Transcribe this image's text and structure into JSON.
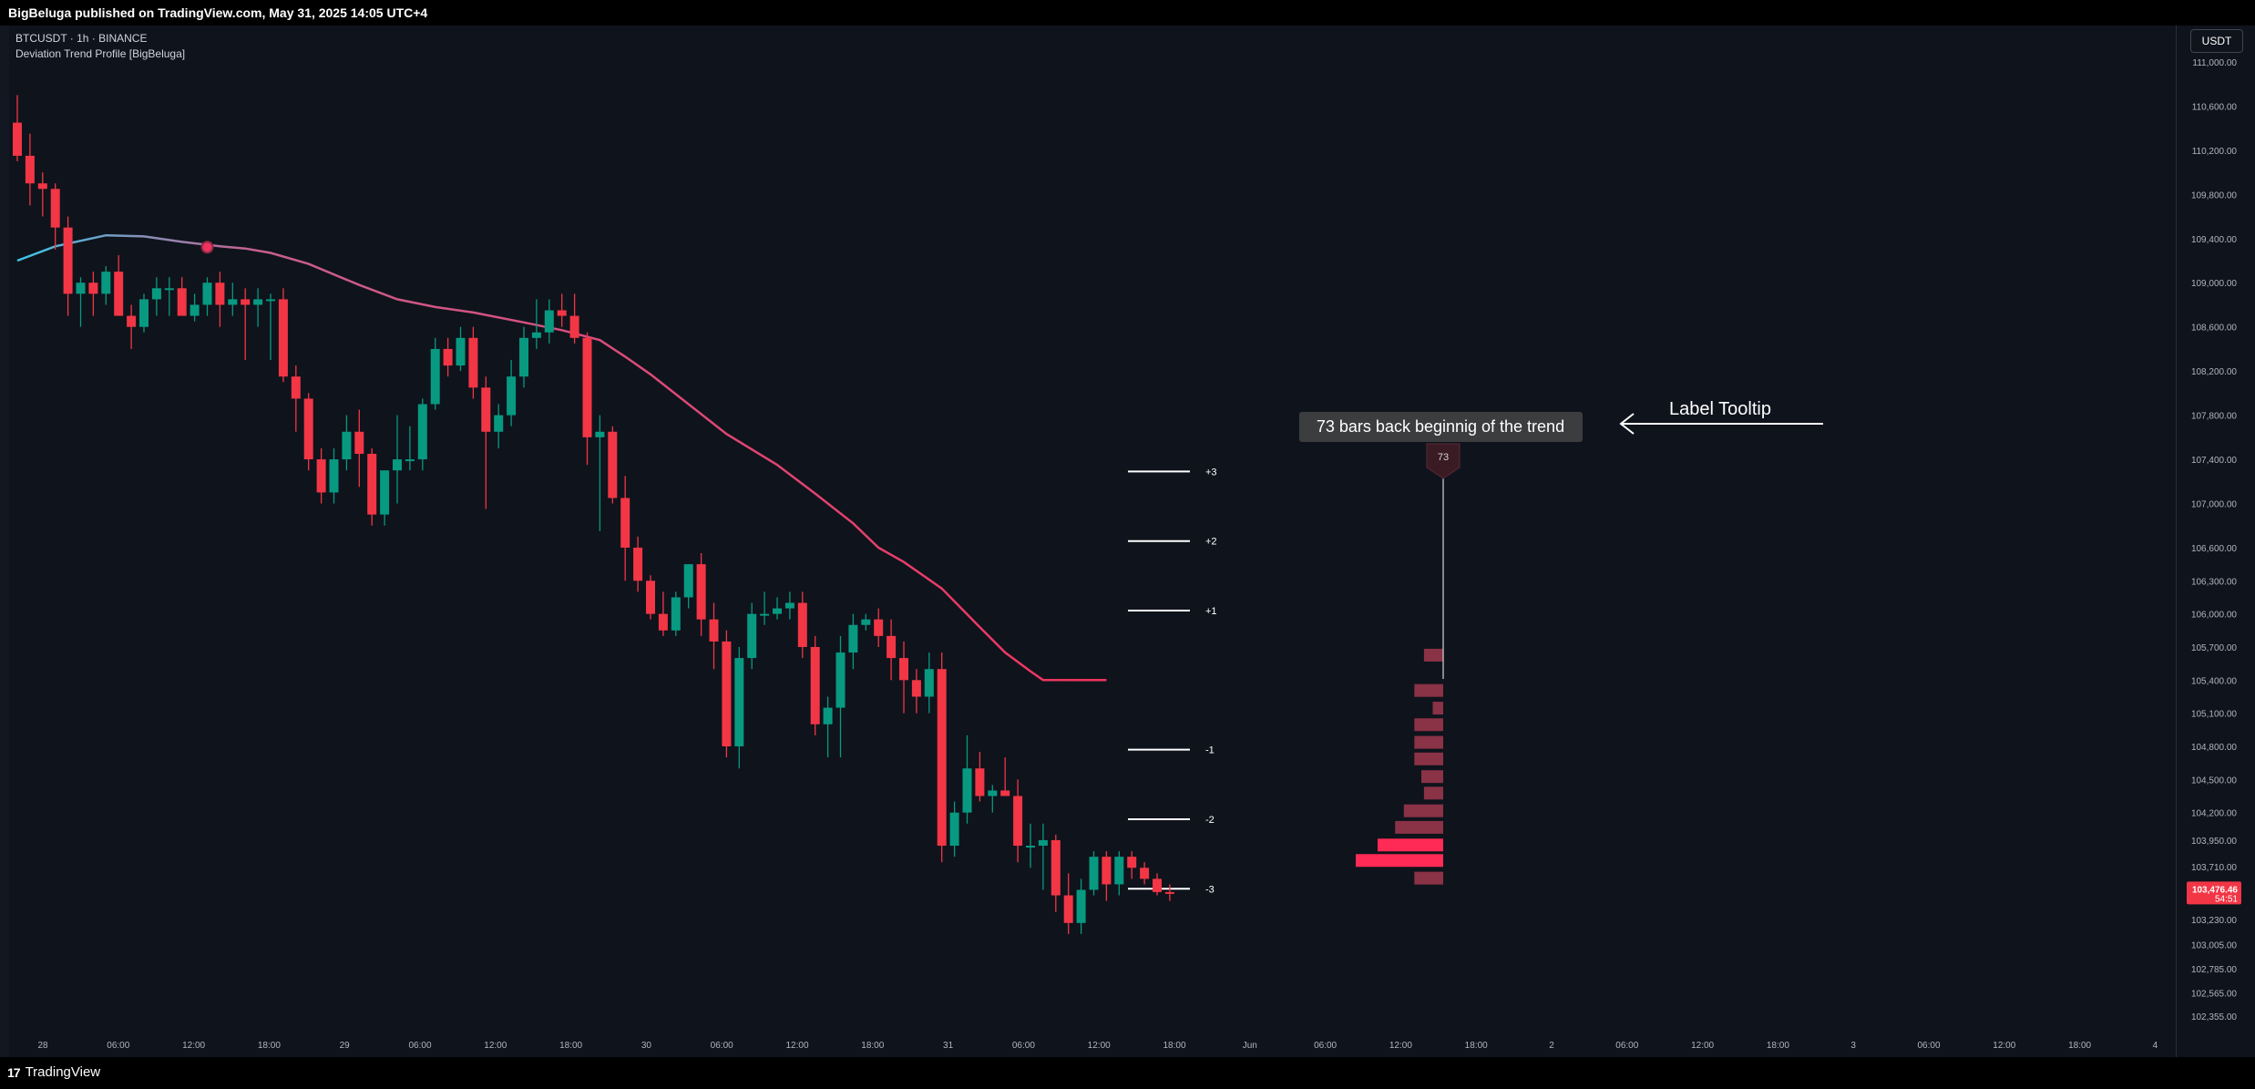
{
  "header": {
    "published_text": "BigBeluga published on TradingView.com, May 31, 2025 14:05 UTC+4"
  },
  "legend": {
    "symbol_line": "BTCUSDT · 1h · BINANCE",
    "indicator_line": "Deviation Trend Profile [BigBeluga]"
  },
  "currency_button": "USDT",
  "footer": {
    "brand": "TradingView",
    "logo": "17"
  },
  "colors": {
    "bull": "#089981",
    "bear": "#f23645",
    "trend_start": "#3bc6e6",
    "trend_end": "#f0335d",
    "profile": "#8a3246",
    "profile_strong": "#ff2a55",
    "background": "#0f131c"
  },
  "annotations": {
    "tooltip": "73 bars back beginnig of the trend",
    "tooltip_arrow_label": "Label Tooltip",
    "marker": "73"
  },
  "chart_data": {
    "type": "candlestick",
    "ylim": [
      102150,
      111330
    ],
    "price_ticks": [
      {
        "label": "111,000.00",
        "v": 111000
      },
      {
        "label": "110,600.00",
        "v": 110600
      },
      {
        "label": "110,200.00",
        "v": 110200
      },
      {
        "label": "109,800.00",
        "v": 109800
      },
      {
        "label": "109,400.00",
        "v": 109400
      },
      {
        "label": "109,000.00",
        "v": 109000
      },
      {
        "label": "108,600.00",
        "v": 108600
      },
      {
        "label": "108,200.00",
        "v": 108200
      },
      {
        "label": "107,800.00",
        "v": 107800
      },
      {
        "label": "107,400.00",
        "v": 107400
      },
      {
        "label": "107,000.00",
        "v": 107000
      },
      {
        "label": "106,600.00",
        "v": 106600
      },
      {
        "label": "106,300.00",
        "v": 106300
      },
      {
        "label": "106,000.00",
        "v": 106000
      },
      {
        "label": "105,700.00",
        "v": 105700
      },
      {
        "label": "105,400.00",
        "v": 105400
      },
      {
        "label": "105,100.00",
        "v": 105100
      },
      {
        "label": "104,800.00",
        "v": 104800
      },
      {
        "label": "104,500.00",
        "v": 104500
      },
      {
        "label": "104,200.00",
        "v": 104200
      },
      {
        "label": "103,950.00",
        "v": 103950
      },
      {
        "label": "103,710.00",
        "v": 103710
      },
      {
        "label": "103,230.00",
        "v": 103230
      },
      {
        "label": "103,005.00",
        "v": 103005
      },
      {
        "label": "102,785.00",
        "v": 102785
      },
      {
        "label": "102,565.00",
        "v": 102565
      },
      {
        "label": "102,355.00",
        "v": 102355
      }
    ],
    "last_price": {
      "label": "103,476.46",
      "countdown": "54:51",
      "v": 103476
    },
    "time_ticks": [
      "28",
      "06:00",
      "12:00",
      "18:00",
      "29",
      "06:00",
      "12:00",
      "18:00",
      "30",
      "06:00",
      "12:00",
      "18:00",
      "31",
      "06:00",
      "12:00",
      "18:00",
      "Jun",
      "06:00",
      "12:00",
      "18:00",
      "2",
      "06:00",
      "12:00",
      "18:00",
      "3",
      "06:00",
      "12:00",
      "18:00",
      "4"
    ],
    "candles": [
      [
        110450,
        110700,
        110100,
        110150
      ],
      [
        110150,
        110350,
        109700,
        109900
      ],
      [
        109900,
        110000,
        109600,
        109850
      ],
      [
        109850,
        109900,
        109300,
        109500
      ],
      [
        109500,
        109600,
        108700,
        108900
      ],
      [
        108900,
        109050,
        108600,
        109000
      ],
      [
        109000,
        109100,
        108700,
        108900
      ],
      [
        108900,
        109150,
        108800,
        109100
      ],
      [
        109100,
        109250,
        108700,
        108700
      ],
      [
        108700,
        108800,
        108400,
        108600
      ],
      [
        108600,
        108900,
        108550,
        108850
      ],
      [
        108850,
        109050,
        108700,
        108950
      ],
      [
        108950,
        109050,
        108700,
        108950
      ],
      [
        108950,
        109050,
        108700,
        108700
      ],
      [
        108700,
        108900,
        108650,
        108800
      ],
      [
        108800,
        109050,
        108700,
        109000
      ],
      [
        109000,
        109100,
        108600,
        108800
      ],
      [
        108800,
        109000,
        108700,
        108850
      ],
      [
        108850,
        108950,
        108300,
        108800
      ],
      [
        108800,
        108950,
        108600,
        108850
      ],
      [
        108850,
        108900,
        108300,
        108850
      ],
      [
        108850,
        108950,
        108100,
        108150
      ],
      [
        108150,
        108250,
        107650,
        107950
      ],
      [
        107950,
        108000,
        107300,
        107400
      ],
      [
        107400,
        107500,
        107000,
        107100
      ],
      [
        107100,
        107500,
        107000,
        107400
      ],
      [
        107400,
        107800,
        107300,
        107650
      ],
      [
        107650,
        107850,
        107150,
        107450
      ],
      [
        107450,
        107500,
        106800,
        106900
      ],
      [
        106900,
        107300,
        106800,
        107300
      ],
      [
        107300,
        107800,
        107000,
        107400
      ],
      [
        107400,
        107700,
        107300,
        107400
      ],
      [
        107400,
        107950,
        107300,
        107900
      ],
      [
        107900,
        108500,
        107850,
        108400
      ],
      [
        108400,
        108500,
        108150,
        108250
      ],
      [
        108250,
        108600,
        108200,
        108500
      ],
      [
        108500,
        108600,
        107950,
        108050
      ],
      [
        108050,
        108150,
        106950,
        107650
      ],
      [
        107650,
        107900,
        107500,
        107800
      ],
      [
        107800,
        108300,
        107700,
        108150
      ],
      [
        108150,
        108600,
        108050,
        108500
      ],
      [
        108500,
        108850,
        108400,
        108550
      ],
      [
        108550,
        108850,
        108450,
        108750
      ],
      [
        108750,
        108900,
        108600,
        108700
      ],
      [
        108700,
        108900,
        108450,
        108500
      ],
      [
        108500,
        108550,
        107350,
        107600
      ],
      [
        107600,
        107800,
        106750,
        107650
      ],
      [
        107650,
        107700,
        107000,
        107050
      ],
      [
        107050,
        107250,
        106300,
        106600
      ],
      [
        106600,
        106700,
        106200,
        106300
      ],
      [
        106300,
        106350,
        105950,
        106000
      ],
      [
        106000,
        106200,
        105800,
        105850
      ],
      [
        105850,
        106200,
        105800,
        106150
      ],
      [
        106150,
        106450,
        106050,
        106450
      ],
      [
        106450,
        106550,
        105800,
        105950
      ],
      [
        105950,
        106100,
        105500,
        105750
      ],
      [
        105750,
        105850,
        104700,
        104800
      ],
      [
        104800,
        105700,
        104600,
        105600
      ],
      [
        105600,
        106100,
        105500,
        106000
      ],
      [
        106000,
        106200,
        105900,
        106000
      ],
      [
        106000,
        106150,
        105950,
        106050
      ],
      [
        106050,
        106200,
        105950,
        106100
      ],
      [
        106100,
        106200,
        105600,
        105700
      ],
      [
        105700,
        105800,
        104900,
        105000
      ],
      [
        105000,
        105250,
        104700,
        105150
      ],
      [
        105150,
        105800,
        104700,
        105650
      ],
      [
        105650,
        106000,
        105500,
        105900
      ],
      [
        105900,
        106000,
        105850,
        105950
      ],
      [
        105950,
        106050,
        105700,
        105800
      ],
      [
        105800,
        105950,
        105400,
        105600
      ],
      [
        105600,
        105750,
        105100,
        105400
      ],
      [
        105400,
        105500,
        105100,
        105250
      ],
      [
        105250,
        105650,
        105100,
        105500
      ],
      [
        105500,
        105650,
        103750,
        103900
      ],
      [
        103900,
        104300,
        103800,
        104200
      ],
      [
        104200,
        104900,
        104100,
        104600
      ],
      [
        104600,
        104750,
        104300,
        104350
      ],
      [
        104350,
        104450,
        104200,
        104400
      ],
      [
        104400,
        104700,
        104350,
        104350
      ],
      [
        104350,
        104500,
        103750,
        103900
      ],
      [
        103900,
        104100,
        103700,
        103900
      ],
      [
        103900,
        104100,
        103500,
        103950
      ],
      [
        103950,
        104000,
        103300,
        103450
      ],
      [
        103450,
        103650,
        103100,
        103200
      ],
      [
        103200,
        103600,
        103100,
        103500
      ],
      [
        103500,
        103850,
        103450,
        103800
      ],
      [
        103800,
        103850,
        103400,
        103550
      ],
      [
        103550,
        103850,
        103450,
        103800
      ],
      [
        103800,
        103850,
        103600,
        103700
      ],
      [
        103700,
        103750,
        103550,
        103600
      ],
      [
        103600,
        103650,
        103450,
        103480
      ],
      [
        103480,
        103550,
        103400,
        103476
      ]
    ],
    "trend_line": [
      [
        0,
        109200
      ],
      [
        3,
        109330
      ],
      [
        7,
        109430
      ],
      [
        10,
        109420
      ],
      [
        13,
        109370
      ],
      [
        16,
        109330
      ],
      [
        18,
        109310
      ],
      [
        20,
        109270
      ],
      [
        23,
        109170
      ],
      [
        27,
        108980
      ],
      [
        30,
        108850
      ],
      [
        33,
        108780
      ],
      [
        36,
        108730
      ],
      [
        40,
        108640
      ],
      [
        43,
        108570
      ],
      [
        46,
        108480
      ],
      [
        48,
        108330
      ],
      [
        50,
        108170
      ],
      [
        53,
        107900
      ],
      [
        56,
        107630
      ],
      [
        60,
        107350
      ],
      [
        63,
        107090
      ],
      [
        66,
        106820
      ],
      [
        68,
        106600
      ],
      [
        70,
        106470
      ],
      [
        73,
        106230
      ],
      [
        76,
        105880
      ],
      [
        78,
        105650
      ],
      [
        80,
        105480
      ],
      [
        81,
        105400
      ],
      [
        84,
        105400
      ],
      [
        86,
        105400
      ]
    ],
    "trend_marker_index": 15,
    "deviation_levels": [
      {
        "label": "+3",
        "v": 107290
      },
      {
        "label": "+2",
        "v": 106660
      },
      {
        "label": "+1",
        "v": 106030
      },
      {
        "label": "-1",
        "v": 104770
      },
      {
        "label": "-2",
        "v": 104140
      },
      {
        "label": "-3",
        "v": 103510
      }
    ],
    "profile_bins": [
      {
        "v": 105620,
        "w": 0.22
      },
      {
        "v": 105460,
        "w": 0.0
      },
      {
        "v": 105300,
        "w": 0.33
      },
      {
        "v": 105140,
        "w": 0.12
      },
      {
        "v": 104990,
        "w": 0.33
      },
      {
        "v": 104830,
        "w": 0.33
      },
      {
        "v": 104680,
        "w": 0.33
      },
      {
        "v": 104520,
        "w": 0.25
      },
      {
        "v": 104370,
        "w": 0.22
      },
      {
        "v": 104210,
        "w": 0.45
      },
      {
        "v": 104060,
        "w": 0.55
      },
      {
        "v": 103900,
        "w": 0.75
      },
      {
        "v": 103760,
        "w": 1.0
      },
      {
        "v": 103600,
        "w": 0.33
      }
    ]
  }
}
